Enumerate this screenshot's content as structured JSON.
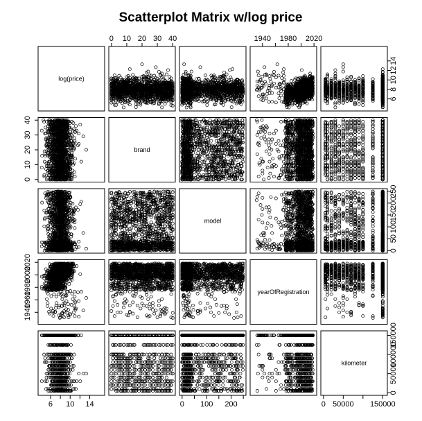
{
  "chart_data": {
    "type": "scatter",
    "subtype": "pairs-matrix",
    "title": "Scatterplot Matrix w/log price",
    "variables": [
      {
        "name": "log(price)",
        "range": [
          4.0,
          16.5
        ],
        "ticks": [
          6,
          10,
          14
        ],
        "axis_ticks": [
          6,
          8,
          10,
          12,
          14
        ],
        "axis_labels": [
          "6",
          "10",
          "14"
        ],
        "axis_labels_alt": [
          "6",
          "8",
          "10",
          "12",
          "14"
        ]
      },
      {
        "name": "brand",
        "range": [
          0,
          40
        ],
        "ticks": [
          0,
          10,
          20,
          30,
          40
        ],
        "axis_labels": [
          "0",
          "10",
          "20",
          "30",
          "40"
        ]
      },
      {
        "name": "model",
        "range": [
          0,
          250
        ],
        "ticks": [
          0,
          50,
          100,
          150,
          200,
          250
        ],
        "axis_labels": [
          "0",
          "100",
          "200"
        ],
        "axis_labels_alt": [
          "0",
          "50",
          "100",
          "150",
          "200",
          "250"
        ]
      },
      {
        "name": "yearOfRegistration",
        "range": [
          1925,
          2020
        ],
        "ticks": [
          1940,
          1960,
          1980,
          2000,
          2020
        ],
        "axis_labels": [
          "1940",
          "1980",
          "2020"
        ],
        "axis_labels_alt": [
          "1940",
          "1960",
          "1980",
          "2000",
          "2020"
        ]
      },
      {
        "name": "kilometer",
        "range": [
          0,
          155000
        ],
        "ticks": [
          0,
          50000,
          100000,
          150000
        ],
        "axis_labels": [
          "0",
          "50000",
          "150000"
        ],
        "axis_labels_alt": [
          "0",
          "50000",
          "100000",
          "150000"
        ]
      }
    ],
    "kilometer_values": [
      5000,
      10000,
      20000,
      30000,
      40000,
      50000,
      60000,
      70000,
      80000,
      90000,
      100000,
      125000,
      150000
    ],
    "grid": false,
    "legend": "none"
  }
}
